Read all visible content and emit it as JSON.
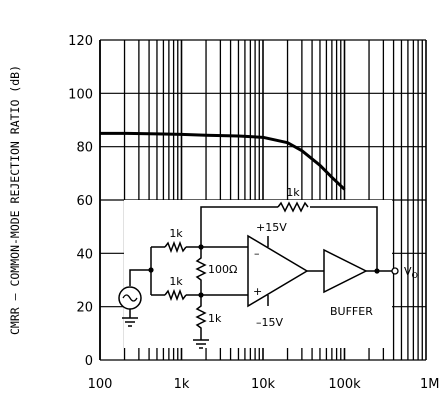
{
  "chart_data": {
    "type": "line",
    "ylabel": "CMRR – COMMON-MODE REJECTION RATIO (dB)",
    "x_scale": "log",
    "xlim": [
      100,
      1000000
    ],
    "ylim": [
      0,
      120
    ],
    "x_tick_labels": [
      "100",
      "1k",
      "10k",
      "100k",
      "1M"
    ],
    "y_tick_labels": [
      "0",
      "20",
      "40",
      "60",
      "80",
      "100",
      "120"
    ],
    "grid": true,
    "series": [
      {
        "x": [
          100,
          200,
          500,
          1000,
          2000,
          5000,
          10000,
          20000,
          30000,
          50000,
          70000,
          100000
        ],
        "y": [
          85,
          85,
          84.8,
          84.6,
          84.3,
          84,
          83.5,
          81.5,
          78.5,
          73,
          68.5,
          64
        ]
      }
    ]
  },
  "circuit": {
    "r_in_top": "1k",
    "r_in_bottom": "1k",
    "r_middle": "100Ω",
    "r_ground": "1k",
    "r_feedback": "1k",
    "supply_pos": "+15V",
    "supply_neg": "–15V",
    "minus_sign": "–",
    "plus_sign": "+",
    "buffer_label": "BUFFER",
    "output_label": "V",
    "output_subscript": "O"
  }
}
